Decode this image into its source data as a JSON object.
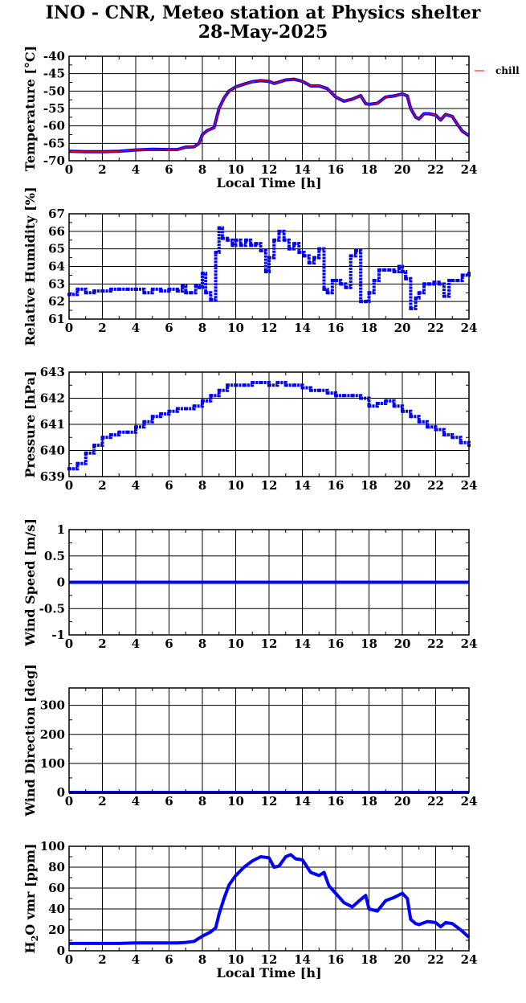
{
  "title": {
    "line1": "INO - CNR, Meteo station at Physics shelter",
    "line2": "28-May-2025"
  },
  "colors": {
    "series": "#0000ff",
    "chill": "#ff0000",
    "grid": "#000000"
  },
  "chart_data": [
    {
      "id": "temperature",
      "type": "line",
      "ylabel": "Temperature [°C]",
      "xlabel": "Local Time [h]",
      "xlim": [
        0,
        24
      ],
      "ylim": [
        -70,
        -40
      ],
      "xticks": [
        0,
        2,
        4,
        6,
        8,
        10,
        12,
        14,
        16,
        18,
        20,
        22,
        24
      ],
      "yticks": [
        -70,
        -65,
        -60,
        -55,
        -50,
        -45,
        -40
      ],
      "grid": true,
      "legend": [
        "chill"
      ],
      "series": [
        {
          "name": "",
          "color": "#0000ff",
          "x": [
            0,
            1,
            2,
            3,
            4,
            5,
            6,
            6.5,
            7,
            7.5,
            7.8,
            8,
            8.3,
            8.7,
            9,
            9.3,
            9.6,
            10,
            10.5,
            11,
            11.5,
            12,
            12.3,
            12.6,
            13,
            13.5,
            14,
            14.5,
            15,
            15.5,
            16,
            16.5,
            17,
            17.5,
            17.8,
            18,
            18.5,
            19,
            19.5,
            20,
            20.3,
            20.5,
            20.8,
            21,
            21.3,
            21.6,
            22,
            22.3,
            22.6,
            23,
            23.3,
            23.6,
            24
          ],
          "y": [
            -67.3,
            -67.4,
            -67.4,
            -67.3,
            -66.9,
            -66.7,
            -66.8,
            -66.8,
            -66.1,
            -66,
            -65,
            -62.5,
            -61.3,
            -60.5,
            -55,
            -52,
            -50,
            -48.8,
            -48,
            -47.3,
            -47,
            -47.2,
            -47.8,
            -47.4,
            -46.8,
            -46.6,
            -47.2,
            -48.5,
            -48.5,
            -49.3,
            -51.7,
            -52.9,
            -52.3,
            -51.3,
            -53.6,
            -53.8,
            -53.5,
            -51.7,
            -51.4,
            -50.8,
            -51.4,
            -55,
            -57.5,
            -58,
            -56.5,
            -56.5,
            -56.9,
            -58.3,
            -56.7,
            -57.3,
            -59.5,
            -61.5,
            -62.8
          ]
        },
        {
          "name": "chill",
          "color": "#ff0000",
          "x": [
            0,
            1,
            2,
            3,
            4,
            5,
            6,
            6.5,
            7,
            7.5,
            7.8,
            8,
            8.3,
            8.7,
            9,
            9.3,
            9.6,
            10,
            10.5,
            11,
            11.5,
            12,
            12.3,
            12.6,
            13,
            13.5,
            14,
            14.5,
            15,
            15.5,
            16,
            16.5,
            17,
            17.5,
            17.8,
            18,
            18.5,
            19,
            19.5,
            20,
            20.3,
            20.5,
            20.8,
            21,
            21.3,
            21.6,
            22,
            22.3,
            22.6,
            23,
            23.3,
            23.6,
            24
          ],
          "y": [
            -67.3,
            -67.4,
            -67.4,
            -67.3,
            -66.9,
            -66.7,
            -66.8,
            -66.8,
            -66.1,
            -66,
            -65,
            -62.5,
            -61.3,
            -60.5,
            -55,
            -52,
            -50,
            -48.8,
            -48,
            -47.3,
            -47,
            -47.2,
            -47.8,
            -47.4,
            -46.8,
            -46.6,
            -47.2,
            -48.5,
            -48.5,
            -49.3,
            -51.7,
            -52.9,
            -52.3,
            -51.3,
            -53.6,
            -53.8,
            -53.5,
            -51.7,
            -51.4,
            -50.8,
            -51.4,
            -55,
            -57.5,
            -58,
            -56.5,
            -56.5,
            -56.9,
            -58.3,
            -56.7,
            -57.3,
            -59.5,
            -61.5,
            -62.8
          ]
        }
      ]
    },
    {
      "id": "humidity",
      "type": "scatter",
      "ylabel": "Relative Humidity [%]",
      "xlabel": "",
      "xlim": [
        0,
        24
      ],
      "ylim": [
        61,
        67
      ],
      "xticks": [
        0,
        2,
        4,
        6,
        8,
        10,
        12,
        14,
        16,
        18,
        20,
        22,
        24
      ],
      "yticks": [
        61,
        62,
        63,
        64,
        65,
        66,
        67
      ],
      "grid": true,
      "series": [
        {
          "name": "",
          "color": "#0000ff",
          "x": [
            0,
            0.5,
            1,
            1.5,
            2,
            2.5,
            3,
            3.5,
            4,
            4.5,
            5,
            5.5,
            6,
            6.5,
            6.8,
            7,
            7.3,
            7.6,
            7.8,
            8,
            8.2,
            8.5,
            8.8,
            9,
            9.2,
            9.5,
            9.8,
            10,
            10.3,
            10.6,
            10.9,
            11.2,
            11.5,
            11.8,
            12,
            12.3,
            12.6,
            12.9,
            13.2,
            13.5,
            13.8,
            14.1,
            14.4,
            14.7,
            15,
            15.3,
            15.5,
            15.8,
            16,
            16.3,
            16.6,
            16.9,
            17.2,
            17.5,
            17.8,
            18,
            18.3,
            18.6,
            18.9,
            19.2,
            19.5,
            19.8,
            20,
            20.2,
            20.5,
            20.8,
            21,
            21.3,
            21.6,
            21.9,
            22.2,
            22.5,
            22.8,
            23,
            23.3,
            23.6,
            24
          ],
          "y": [
            62.4,
            62.7,
            62.5,
            62.6,
            62.6,
            62.7,
            62.7,
            62.7,
            62.7,
            62.5,
            62.7,
            62.6,
            62.7,
            62.6,
            62.9,
            62.5,
            62.5,
            62.9,
            62.8,
            63.6,
            62.5,
            62.1,
            64.8,
            66.2,
            65.6,
            65.5,
            65.2,
            65.5,
            65.2,
            65.5,
            65.2,
            65.3,
            64.9,
            63.7,
            64.5,
            65.5,
            66,
            65.5,
            65,
            65.3,
            64.8,
            64.6,
            64.2,
            64.5,
            65,
            62.7,
            62.5,
            63.2,
            63.2,
            63,
            62.8,
            64.6,
            64.9,
            62,
            62,
            62.5,
            63.2,
            63.8,
            63.8,
            63.8,
            63.7,
            64,
            63.7,
            63.3,
            61.6,
            62.2,
            62.5,
            63,
            63,
            63.1,
            63,
            62.3,
            63.2,
            63.2,
            63.2,
            63.5,
            63.6
          ]
        }
      ]
    },
    {
      "id": "pressure",
      "type": "scatter",
      "ylabel": "Pressure [hPa]",
      "xlabel": "",
      "xlim": [
        0,
        24
      ],
      "ylim": [
        639,
        643
      ],
      "xticks": [
        0,
        2,
        4,
        6,
        8,
        10,
        12,
        14,
        16,
        18,
        20,
        22,
        24
      ],
      "yticks": [
        639,
        640,
        641,
        642,
        643
      ],
      "grid": true,
      "series": [
        {
          "name": "",
          "color": "#0000ff",
          "x": [
            0,
            0.5,
            1,
            1.5,
            2,
            2.5,
            3,
            3.5,
            4,
            4.5,
            5,
            5.5,
            6,
            6.5,
            7,
            7.5,
            8,
            8.5,
            9,
            9.5,
            10,
            10.5,
            11,
            11.5,
            12,
            12.5,
            13,
            13.5,
            14,
            14.5,
            15,
            15.5,
            16,
            16.5,
            17,
            17.5,
            18,
            18.5,
            19,
            19.5,
            20,
            20.5,
            21,
            21.5,
            22,
            22.5,
            23,
            23.5,
            24
          ],
          "y": [
            639.3,
            639.5,
            639.9,
            640.2,
            640.5,
            640.6,
            640.7,
            640.7,
            640.9,
            641.1,
            641.3,
            641.4,
            641.5,
            641.6,
            641.6,
            641.7,
            641.9,
            642.1,
            642.3,
            642.5,
            642.5,
            642.5,
            642.6,
            642.6,
            642.5,
            642.6,
            642.5,
            642.5,
            642.4,
            642.3,
            642.3,
            642.2,
            642.1,
            642.1,
            642.1,
            642,
            641.7,
            641.8,
            641.9,
            641.7,
            641.5,
            641.3,
            641.1,
            640.9,
            640.8,
            640.6,
            640.5,
            640.3,
            640.2
          ]
        }
      ]
    },
    {
      "id": "wind_speed",
      "type": "line",
      "ylabel": "Wind Speed [m/s]",
      "xlabel": "",
      "xlim": [
        0,
        24
      ],
      "ylim": [
        -1,
        1
      ],
      "xticks": [
        0,
        2,
        4,
        6,
        8,
        10,
        12,
        14,
        16,
        18,
        20,
        22,
        24
      ],
      "yticks": [
        -1,
        -0.5,
        0,
        0.5,
        1
      ],
      "grid": true,
      "series": [
        {
          "name": "",
          "color": "#0000ff",
          "x": [
            0,
            24
          ],
          "y": [
            0,
            0
          ]
        }
      ]
    },
    {
      "id": "wind_direction",
      "type": "line",
      "ylabel": "Wind Direction [deg]",
      "xlabel": "",
      "xlim": [
        0,
        24
      ],
      "ylim": [
        0,
        360
      ],
      "xticks": [
        0,
        2,
        4,
        6,
        8,
        10,
        12,
        14,
        16,
        18,
        20,
        22,
        24
      ],
      "yticks": [
        0,
        100,
        200,
        300
      ],
      "grid": true,
      "series": [
        {
          "name": "",
          "color": "#0000ff",
          "x": [
            0,
            24
          ],
          "y": [
            0,
            0
          ]
        }
      ]
    },
    {
      "id": "h2o_vmr",
      "type": "line",
      "ylabel": "H2O vmr [ppm]",
      "xlabel": "Local Time [h]",
      "xlim": [
        0,
        24
      ],
      "ylim": [
        0,
        100
      ],
      "xticks": [
        0,
        2,
        4,
        6,
        8,
        10,
        12,
        14,
        16,
        18,
        20,
        22,
        24
      ],
      "yticks": [
        0,
        20,
        40,
        60,
        80,
        100
      ],
      "grid": true,
      "series": [
        {
          "name": "",
          "color": "#0000ff",
          "x": [
            0,
            1,
            2,
            3,
            4,
            5,
            6,
            6.5,
            7,
            7.5,
            8,
            8.5,
            8.8,
            9,
            9.3,
            9.6,
            10,
            10.5,
            11,
            11.5,
            12,
            12.3,
            12.6,
            13,
            13.3,
            13.6,
            14,
            14.5,
            15,
            15.3,
            15.6,
            16,
            16.5,
            17,
            17.5,
            17.8,
            18,
            18.5,
            19,
            19.5,
            20,
            20.3,
            20.5,
            20.8,
            21,
            21.5,
            22,
            22.3,
            22.6,
            23,
            23.5,
            24
          ],
          "y": [
            7,
            7,
            7,
            7,
            7.5,
            7.5,
            7.5,
            7.5,
            8,
            9,
            14,
            18,
            22,
            35,
            50,
            63,
            72,
            80,
            86,
            90,
            89,
            80,
            81,
            90,
            92,
            88,
            87,
            75,
            72,
            75,
            62,
            55,
            46,
            42,
            49,
            53,
            40,
            38,
            48,
            51,
            55,
            50,
            30,
            26,
            25,
            28,
            27,
            23,
            27,
            26,
            20,
            13
          ]
        }
      ]
    }
  ]
}
